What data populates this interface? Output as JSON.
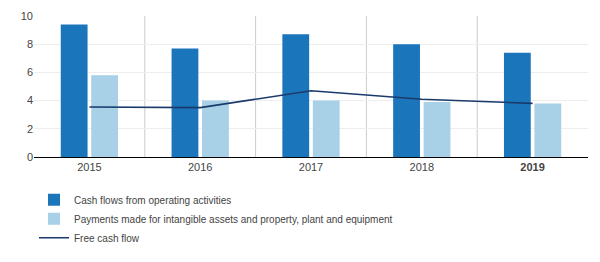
{
  "chart_data": {
    "type": "bar",
    "categories": [
      "2015",
      "2016",
      "2017",
      "2018",
      "2019"
    ],
    "series": [
      {
        "name": "Cash flows from operating activities",
        "type": "bar",
        "color": "#1B75BB",
        "values": [
          9.4,
          7.7,
          8.7,
          8.0,
          7.4
        ]
      },
      {
        "name": "Payments made for intangible assets and property, plant and equipment",
        "type": "bar",
        "color": "#A8D0E6",
        "values": [
          5.8,
          4.0,
          4.0,
          3.9,
          3.8
        ]
      },
      {
        "name": "Free cash flow",
        "type": "line",
        "color": "#1A3A6B",
        "values": [
          3.55,
          3.5,
          4.7,
          4.1,
          3.8
        ]
      }
    ],
    "ylim": [
      0,
      10
    ],
    "yticks": [
      0,
      2,
      4,
      6,
      8,
      10
    ],
    "grid": true,
    "legend": "lower left"
  }
}
